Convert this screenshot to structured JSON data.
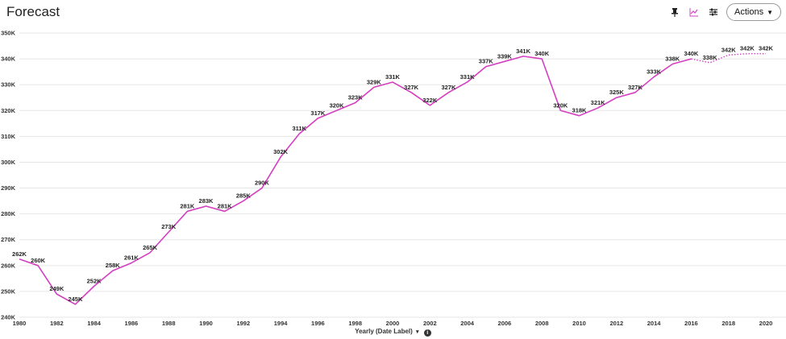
{
  "header": {
    "title": "Forecast",
    "actions_label": "Actions",
    "icons": [
      "pin-icon",
      "chart-type-icon",
      "settings-sliders-icon",
      "caret-down-icon"
    ]
  },
  "chart_data": {
    "type": "line",
    "title": "",
    "xlabel": "Yearly (Date Label)",
    "ylabel": "",
    "ylim": [
      240000,
      350000
    ],
    "y_ticks": [
      "240K",
      "250K",
      "260K",
      "270K",
      "280K",
      "290K",
      "300K",
      "310K",
      "320K",
      "330K",
      "340K",
      "350K"
    ],
    "x_ticks": [
      "1980",
      "1982",
      "1984",
      "1986",
      "1988",
      "1990",
      "1992",
      "1994",
      "1996",
      "1998",
      "2000",
      "2002",
      "2004",
      "2006",
      "2008",
      "2010",
      "2012",
      "2014",
      "2016",
      "2018",
      "2020"
    ],
    "grid": true,
    "line_color": "#d43fc0",
    "series": [
      {
        "style": "solid",
        "x": [
          1980,
          1981,
          1982,
          1983,
          1984,
          1985,
          1986,
          1987,
          1988,
          1989,
          1990,
          1991,
          1992,
          1993,
          1994,
          1995,
          1996,
          1997,
          1998,
          1999,
          2000,
          2001,
          2002,
          2003,
          2004,
          2005,
          2006,
          2007,
          2008,
          2009,
          2010,
          2011,
          2012,
          2013,
          2014,
          2015,
          2016
        ],
        "values": [
          262500,
          260000,
          249000,
          245000,
          252000,
          258000,
          261000,
          265000,
          273000,
          281000,
          283000,
          281000,
          285000,
          290000,
          302000,
          311000,
          317000,
          320000,
          323000,
          329000,
          331000,
          327000,
          322000,
          327000,
          331000,
          337000,
          339000,
          341000,
          340000,
          320000,
          318000,
          321000,
          325000,
          327000,
          333000,
          338000,
          340000
        ],
        "labels": [
          "262K",
          "260K",
          "249K",
          "245K",
          "252K",
          "258K",
          "261K",
          "265K",
          "273K",
          "281K",
          "283K",
          "281K",
          "285K",
          "290K",
          "302K",
          "311K",
          "317K",
          "320K",
          "323K",
          "329K",
          "331K",
          "327K",
          "322K",
          "327K",
          "331K",
          "337K",
          "339K",
          "341K",
          "340K",
          "320K",
          "318K",
          "321K",
          "325K",
          "327K",
          "333K",
          "338K",
          "340K"
        ]
      },
      {
        "style": "dotted",
        "x": [
          2016,
          2017,
          2018,
          2019,
          2020
        ],
        "values": [
          340000,
          338500,
          341500,
          342000,
          342000
        ],
        "labels": [
          "",
          "338K",
          "342K",
          "342K",
          "342K"
        ]
      }
    ]
  }
}
